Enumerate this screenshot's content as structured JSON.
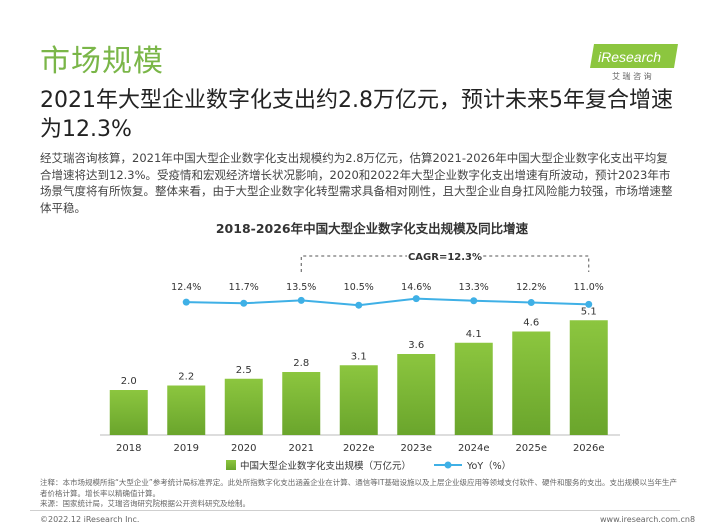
{
  "header": {
    "section_title": "市场规模",
    "logo_text": "iResearch",
    "logo_subtext": "艾 瑞 咨 询",
    "headline": "2021年大型企业数字化支出约2.8万亿元，预计未来5年复合增速为12.3%"
  },
  "body": {
    "paragraph": "经艾瑞咨询核算，2021年中国大型企业数字化支出规模约为2.8万亿元，估算2021-2026年中国大型企业数字化支出平均复合增速将达到12.3%。受疫情和宏观经济增长状况影响，2020和2022年大型企业数字化支出增速有所波动，预计2023年市场景气度将有所恢复。整体来看，由于大型企业数字化转型需求具备相对刚性，且大型企业自身扛风险能力较强，市场增速整体平稳。"
  },
  "chart_data": {
    "type": "bar",
    "title": "2018-2026年中国大型企业数字化支出规模及同比增速",
    "categories": [
      "2018",
      "2019",
      "2020",
      "2021",
      "2022e",
      "2023e",
      "2024e",
      "2025e",
      "2026e"
    ],
    "series": [
      {
        "name": "中国大型企业数字化支出规模（万亿元）",
        "type": "bar",
        "values": [
          2.0,
          2.2,
          2.5,
          2.8,
          3.1,
          3.6,
          4.1,
          4.6,
          5.1
        ],
        "labels": [
          "2.0",
          "2.2",
          "2.5",
          "2.8",
          "3.1",
          "3.6",
          "4.1",
          "4.6",
          "5.1"
        ]
      },
      {
        "name": "YoY（%）",
        "type": "line",
        "values": [
          null,
          12.4,
          11.7,
          13.5,
          10.5,
          14.6,
          13.3,
          12.2,
          11.0
        ],
        "labels": [
          "",
          "12.4%",
          "11.7%",
          "13.5%",
          "10.5%",
          "14.6%",
          "13.3%",
          "12.2%",
          "11.0%"
        ]
      }
    ],
    "cagr_label": "CAGR=12.3%",
    "cagr_range": [
      "2021",
      "2026e"
    ],
    "ylim": [
      0,
      6
    ],
    "grid": false,
    "legend": "bottom",
    "colors": {
      "bar_top": "#8cc63f",
      "bar_bottom": "#6aa52c",
      "line": "#3fb0e6",
      "bracket": "#555555"
    }
  },
  "footnote": {
    "note": "注释：本市场规模所指“大型企业”参考统计局标准界定。此处所指数字化支出涵盖企业在计算、通信等IT基础设施以及上层企业级应用等领域支付软件、硬件和服务的支出。支出规模以当年生产者价格计算。增长率以精确值计算。",
    "source": "来源：国家统计局，艾瑞咨询研究院根据公开资料研究及绘制。"
  },
  "footer": {
    "copyright": "©2022.12 iResearch Inc.",
    "website": "www.iresearch.com.cn",
    "page": "8"
  }
}
